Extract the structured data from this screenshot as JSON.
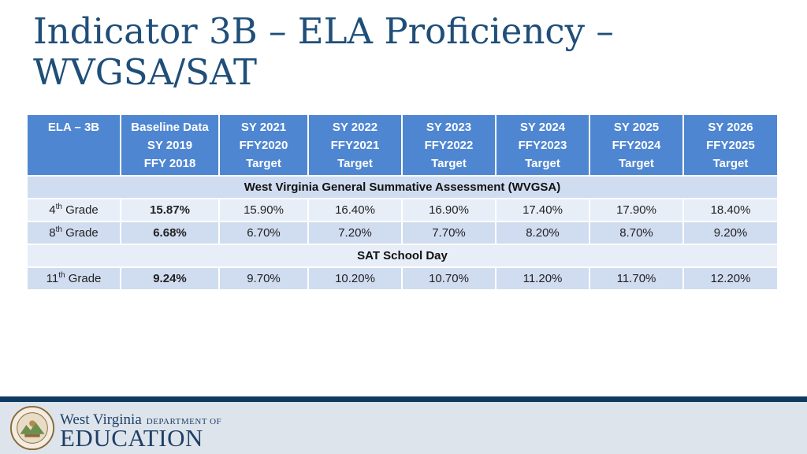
{
  "title": {
    "line1": "Indicator 3B – ELA Proficiency –",
    "line2": "WVGSA/SAT"
  },
  "table": {
    "headers": [
      [
        "ELA – 3B"
      ],
      [
        "Baseline Data",
        "SY 2019",
        "FFY 2018"
      ],
      [
        "SY 2021",
        "FFY2020",
        "Target"
      ],
      [
        "SY 2022",
        "FFY2021",
        "Target"
      ],
      [
        "SY 2023",
        "FFY2022",
        "Target"
      ],
      [
        "SY 2024",
        "FFY2023",
        "Target"
      ],
      [
        "SY 2025",
        "FFY2024",
        "Target"
      ],
      [
        "SY 2026",
        "FFY2025",
        "Target"
      ]
    ],
    "section_wvgsa": "West Virginia General Summative Assessment (WVGSA)",
    "section_sat": "SAT School Day",
    "rows": [
      {
        "grade_num": "4",
        "grade_sup": "th",
        "grade_text": " Grade",
        "baseline": "15.87%",
        "targets": [
          "15.90%",
          "16.40%",
          "16.90%",
          "17.40%",
          "17.90%",
          "18.40%"
        ]
      },
      {
        "grade_num": "8",
        "grade_sup": "th",
        "grade_text": " Grade",
        "baseline": "6.68%",
        "targets": [
          "6.70%",
          "7.20%",
          "7.70%",
          "8.20%",
          "8.70%",
          "9.20%"
        ]
      },
      {
        "grade_num": "11",
        "grade_sup": "th",
        "grade_text": " Grade",
        "baseline": "9.24%",
        "targets": [
          "9.70%",
          "10.20%",
          "10.70%",
          "11.20%",
          "11.70%",
          "12.20%"
        ]
      }
    ]
  },
  "footer": {
    "org_name": "West Virginia",
    "org_dept": "DEPARTMENT OF",
    "org_edu": "EDUCATION",
    "colors": {
      "bar": "#0f3a5f",
      "text": "#1f3f66",
      "header": "#4f86d1"
    }
  }
}
